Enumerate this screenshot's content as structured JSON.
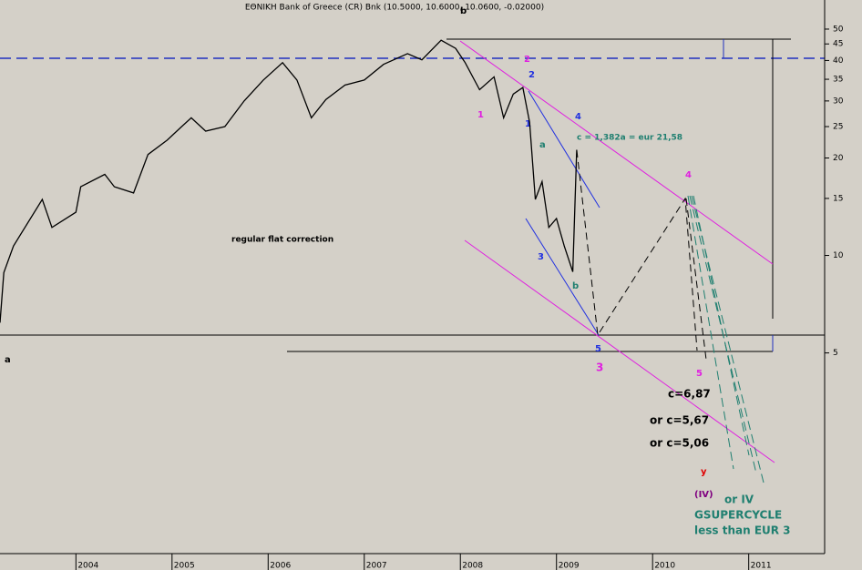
{
  "chart_data": {
    "type": "line",
    "title": "ΕΘΝΙΚΗ Bank of Greece (CR) Bnk (10.5000, 10.6000, 10.0600, -0.02000)",
    "x": [
      2003.21,
      2003.25,
      2003.35,
      2003.65,
      2003.75,
      2004.0,
      2004.05,
      2004.3,
      2004.4,
      2004.6,
      2004.75,
      2004.95,
      2005.1,
      2005.2,
      2005.35,
      2005.55,
      2005.75,
      2005.95,
      2006.15,
      2006.3,
      2006.45,
      2006.6,
      2006.8,
      2007.0,
      2007.2,
      2007.45,
      2007.6,
      2007.8,
      2007.95,
      2008.05,
      2008.2,
      2008.35,
      2008.45,
      2008.55,
      2008.65,
      2008.72,
      2008.78,
      2008.85,
      2008.92,
      2009.0,
      2009.08,
      2009.17,
      2009.21
    ],
    "values": [
      6.2,
      8.85,
      10.7,
      14.9,
      12.2,
      13.6,
      16.3,
      17.8,
      16.3,
      15.6,
      20.5,
      22.7,
      25,
      26.6,
      24.2,
      25,
      30,
      34.8,
      39.4,
      34.8,
      26.6,
      30.3,
      33.6,
      34.8,
      38.9,
      42,
      40.2,
      46.2,
      43.6,
      39.4,
      32.5,
      35.6,
      26.6,
      31.5,
      33,
      25.8,
      14.9,
      16.9,
      12.2,
      13,
      10.7,
      8.9,
      21.2
    ],
    "color": "#000000",
    "xlim": [
      2003.21,
      2011.79
    ],
    "xticks": [
      {
        "value": 2004,
        "label": "2004"
      },
      {
        "value": 2005,
        "label": "2005"
      },
      {
        "value": 2006,
        "label": "2006"
      },
      {
        "value": 2007,
        "label": "2007"
      },
      {
        "value": 2008,
        "label": "2008"
      },
      {
        "value": 2009,
        "label": "2009"
      },
      {
        "value": 2010,
        "label": "2010"
      },
      {
        "value": 2011,
        "label": "2011"
      }
    ],
    "ylim": [
      1.2,
      61.5
    ],
    "log_scale": true,
    "yticks": [
      5,
      10,
      15,
      20,
      25,
      30,
      35,
      40,
      45,
      50
    ],
    "annotations": [
      "a",
      "b",
      "1",
      "2",
      "3",
      "4",
      "5",
      "1",
      "2",
      "3",
      "4",
      "5",
      "a",
      "b",
      "c =  1,382a = eur 21,58",
      "regular flat correction",
      "c=6,87",
      "or c=5,67",
      "or c=5,06",
      "y",
      "(IV)",
      "or IV",
      "GSUPERCYCLE",
      "less than EUR 3"
    ]
  }
}
